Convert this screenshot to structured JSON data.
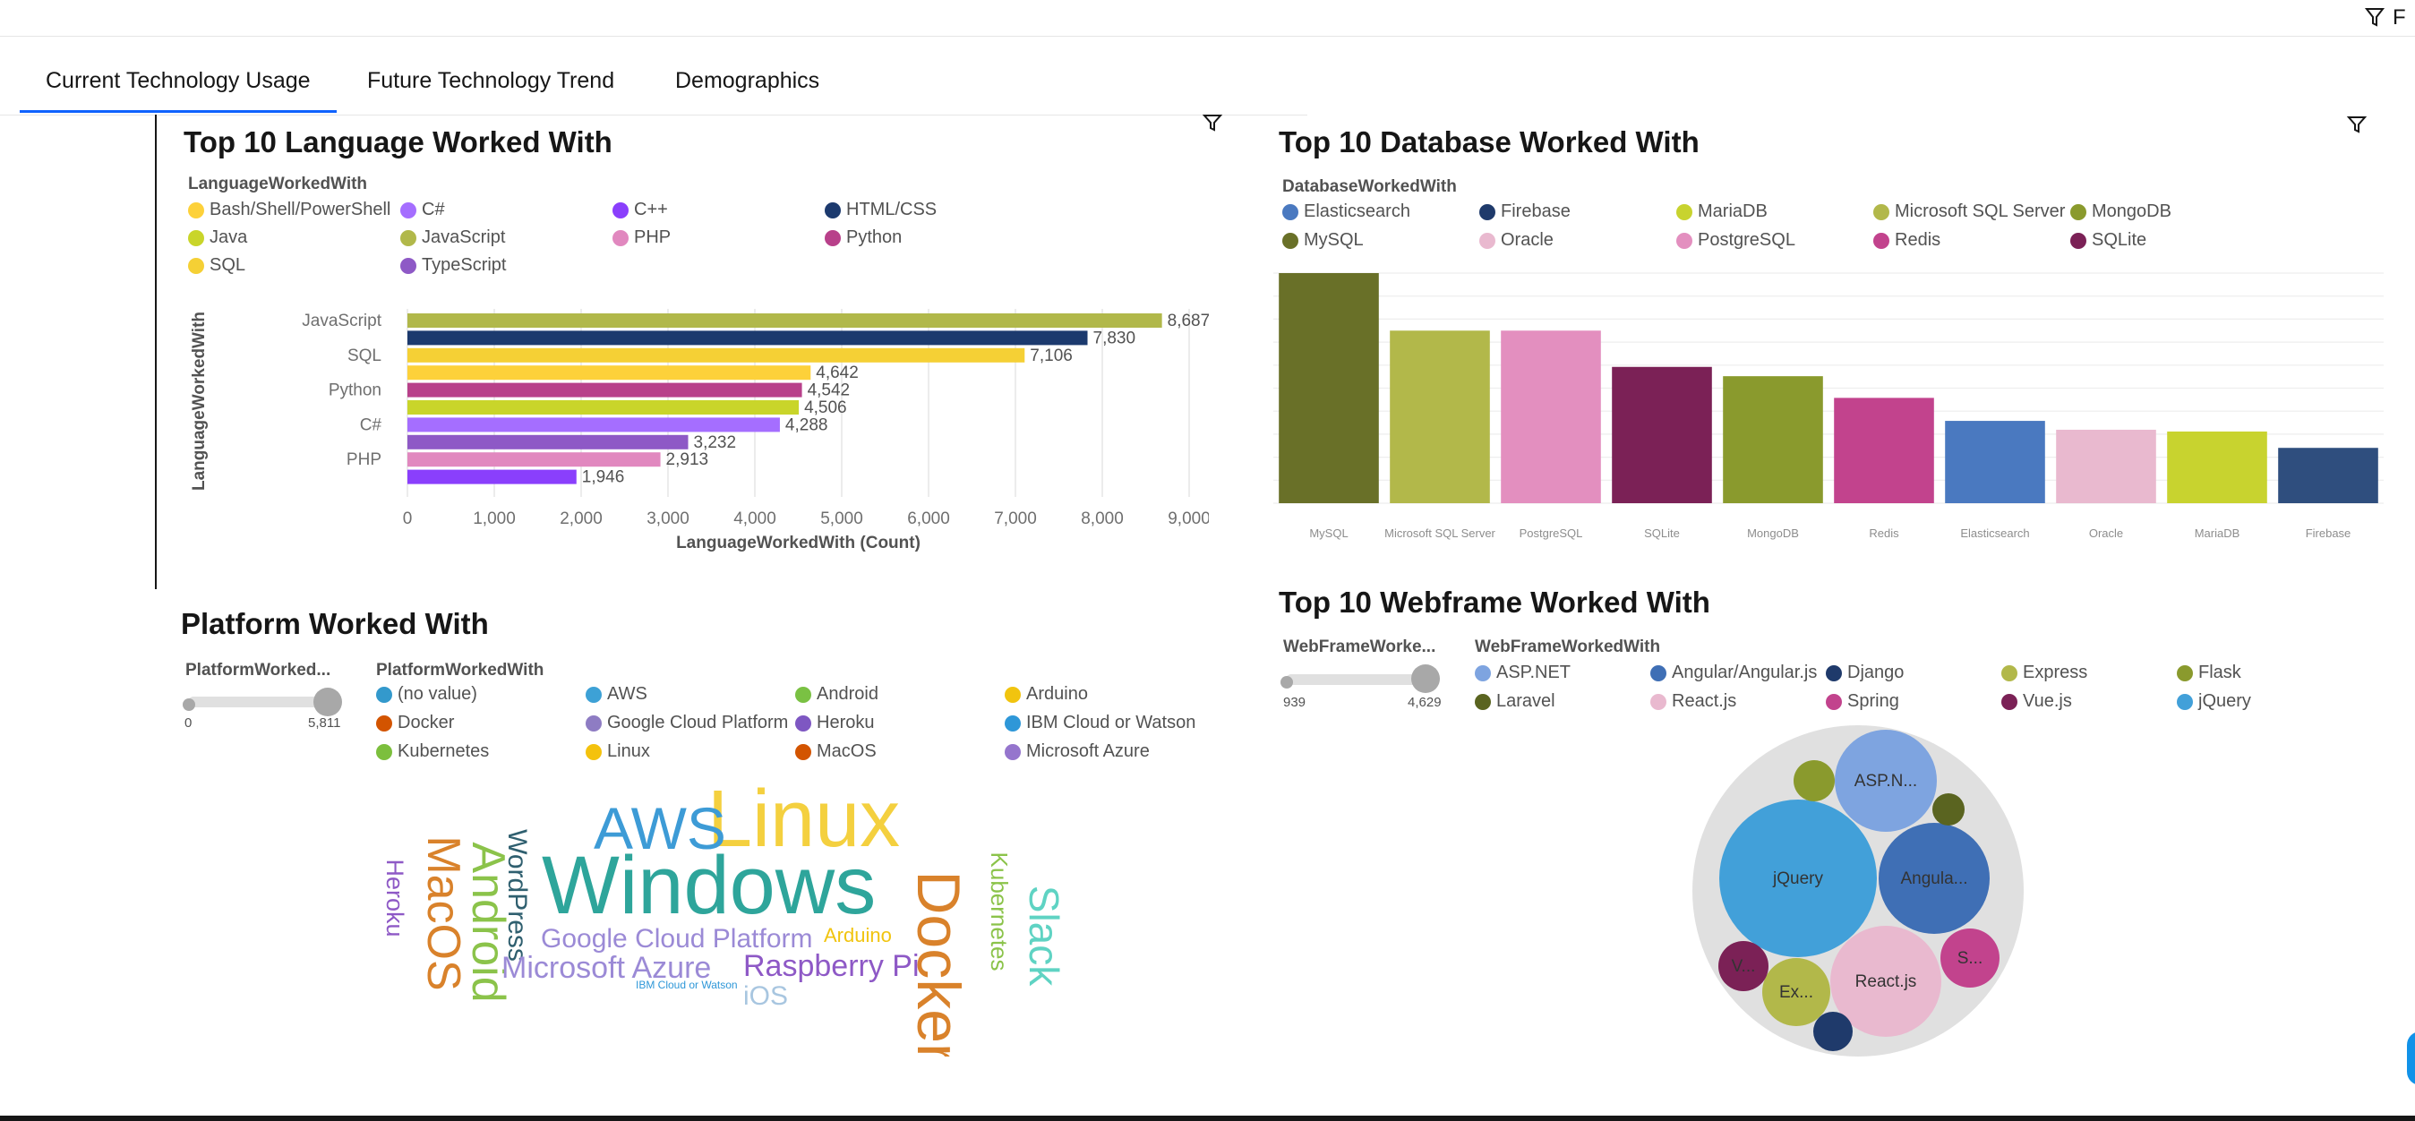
{
  "header": {
    "filter_label": "F"
  },
  "tabs": [
    {
      "label": "Current Technology Usage"
    },
    {
      "label": "Future Technology Trend"
    },
    {
      "label": "Demographics"
    }
  ],
  "language_panel": {
    "title": "Top 10 Language Worked With",
    "legend_title": "LanguageWorkedWith",
    "legend": [
      {
        "label": "Bash/Shell/PowerShell",
        "color": "#fdd13a"
      },
      {
        "label": "C#",
        "color": "#a56eff"
      },
      {
        "label": "C++",
        "color": "#8a3ffc"
      },
      {
        "label": "HTML/CSS",
        "color": "#1c3a6e"
      },
      {
        "label": "Java",
        "color": "#c9d52a"
      },
      {
        "label": "JavaScript",
        "color": "#b1b84a"
      },
      {
        "label": "PHP",
        "color": "#e188bf"
      },
      {
        "label": "Python",
        "color": "#b8408a"
      },
      {
        "label": "SQL",
        "color": "#f5d035"
      },
      {
        "label": "TypeScript",
        "color": "#8e59c6"
      }
    ]
  },
  "database_panel": {
    "title": "Top 10 Database Worked With",
    "legend_title": "DatabaseWorkedWith",
    "legend": [
      {
        "label": "Elasticsearch",
        "color": "#4a79c0"
      },
      {
        "label": "Firebase",
        "color": "#1f3a6b"
      },
      {
        "label": "MariaDB",
        "color": "#c8d32f"
      },
      {
        "label": "Microsoft SQL Server",
        "color": "#b2b84a"
      },
      {
        "label": "MongoDB",
        "color": "#8a9a2d"
      },
      {
        "label": "MySQL",
        "color": "#697028"
      },
      {
        "label": "Oracle",
        "color": "#e9b9cf"
      },
      {
        "label": "PostgreSQL",
        "color": "#e38fbf"
      },
      {
        "label": "Redis",
        "color": "#c2438d"
      },
      {
        "label": "SQLite",
        "color": "#7b2156"
      }
    ]
  },
  "platform_panel": {
    "title": "Platform Worked With",
    "size_legend_title": "PlatformWorked...",
    "size_min": "0",
    "size_max": "5,811",
    "legend_title": "PlatformWorkedWith",
    "legend": [
      {
        "label": "(no value)",
        "color": "#3399cc"
      },
      {
        "label": "AWS",
        "color": "#3da1d6"
      },
      {
        "label": "Android",
        "color": "#7ac143"
      },
      {
        "label": "Arduino",
        "color": "#f1c40f"
      },
      {
        "label": "Docker",
        "color": "#d35400"
      },
      {
        "label": "Google Cloud Platform",
        "color": "#8e7cc3"
      },
      {
        "label": "Heroku",
        "color": "#7e57c2"
      },
      {
        "label": "IBM Cloud or Watson",
        "color": "#2e97d8"
      },
      {
        "label": "Kubernetes",
        "color": "#7cbf3d"
      },
      {
        "label": "Linux",
        "color": "#f4c20d"
      },
      {
        "label": "MacOS",
        "color": "#d35400"
      },
      {
        "label": "Microsoft Azure",
        "color": "#9575cd"
      }
    ],
    "words": [
      {
        "text": "Windows",
        "color": "#2ea59b"
      },
      {
        "text": "Linux",
        "color": "#f4d03f"
      },
      {
        "text": "AWS",
        "color": "#3d9bd6"
      },
      {
        "text": "Docker",
        "color": "#d9822b"
      },
      {
        "text": "Android",
        "color": "#8bc34a"
      },
      {
        "text": "MacOS",
        "color": "#d9822b"
      },
      {
        "text": "WordPress",
        "color": "#2f5f6f"
      },
      {
        "text": "Heroku",
        "color": "#8e59c6"
      },
      {
        "text": "Kubernetes",
        "color": "#8bc34a"
      },
      {
        "text": "Slack",
        "color": "#5fd3c3"
      },
      {
        "text": "Google Cloud Platform",
        "color": "#9b8ad6"
      },
      {
        "text": "Microsoft Azure",
        "color": "#9b8ad6"
      },
      {
        "text": "Raspberry Pi",
        "color": "#8e59c6"
      },
      {
        "text": "Arduino",
        "color": "#f1c40f"
      },
      {
        "text": "iOS",
        "color": "#a8c6e0"
      },
      {
        "text": "IBM Cloud or Watson",
        "color": "#2e97d8"
      }
    ]
  },
  "webframe_panel": {
    "title": "Top 10 Webframe Worked With",
    "size_legend_title": "WebFrameWorke...",
    "size_min": "939",
    "size_max": "4,629",
    "legend_title": "WebFrameWorkedWith",
    "legend": [
      {
        "label": "ASP.NET",
        "color": "#7ea4e0"
      },
      {
        "label": "Angular/Angular.js",
        "color": "#3f6fb5"
      },
      {
        "label": "Django",
        "color": "#1f3a6b"
      },
      {
        "label": "Express",
        "color": "#b2b84a"
      },
      {
        "label": "Flask",
        "color": "#8a9a2d"
      },
      {
        "label": "Laravel",
        "color": "#5a6420"
      },
      {
        "label": "React.js",
        "color": "#e9b9cf"
      },
      {
        "label": "Spring",
        "color": "#c2438d"
      },
      {
        "label": "Vue.js",
        "color": "#7b2156"
      },
      {
        "label": "jQuery",
        "color": "#42a0d9"
      }
    ],
    "bubble_labels": {
      "aspnet": "ASP.N...",
      "jquery": "jQuery",
      "angular": "Angula...",
      "express": "Ex...",
      "react": "React.js",
      "spring": "S...",
      "vue": "V..."
    }
  },
  "chart_data": [
    {
      "type": "bar",
      "orientation": "horizontal",
      "title": "Top 10 Language Worked With",
      "xlabel": "LanguageWorkedWith (Count)",
      "ylabel": "LanguageWorkedWith",
      "xlim": [
        0,
        9000
      ],
      "xticks": [
        "0",
        "1,000",
        "2,000",
        "3,000",
        "4,000",
        "5,000",
        "6,000",
        "7,000",
        "8,000",
        "9,000"
      ],
      "grid": true,
      "categories": [
        "JavaScript",
        "HTML/CSS",
        "SQL",
        "Bash/Shell/PowerShell",
        "Python",
        "Java",
        "C#",
        "TypeScript",
        "PHP",
        "C++"
      ],
      "shown_category_labels": [
        "JavaScript",
        "SQL",
        "Python",
        "C#",
        "PHP"
      ],
      "values": [
        8687,
        7830,
        7106,
        4642,
        4542,
        4506,
        4288,
        3232,
        2913,
        1946
      ],
      "value_labels": [
        "8,687",
        "7,830",
        "7,106",
        "4,642",
        "4,542",
        "4,506",
        "4,288",
        "3,232",
        "2,913",
        "1,946"
      ],
      "colors": [
        "#b1b84a",
        "#1c3a6e",
        "#f5d035",
        "#fdd13a",
        "#b8408a",
        "#c9d52a",
        "#a56eff",
        "#8e59c6",
        "#e188bf",
        "#8a3ffc"
      ]
    },
    {
      "type": "bar",
      "title": "Top 10 Database Worked With",
      "categories": [
        "MySQL",
        "Microsoft SQL Server",
        "PostgreSQL",
        "SQLite",
        "MongoDB",
        "Redis",
        "Elasticsearch",
        "Oracle",
        "MariaDB",
        "Firebase"
      ],
      "values": [
        5200,
        3900,
        3900,
        3080,
        2870,
        2380,
        1860,
        1660,
        1620,
        1250
      ],
      "colors": [
        "#697028",
        "#b2b84a",
        "#e38fbf",
        "#7b2156",
        "#8a9a2d",
        "#c2438d",
        "#4a79c0",
        "#e9b9cf",
        "#c8d32f",
        "#2f4e7e"
      ],
      "grid": true
    }
  ]
}
